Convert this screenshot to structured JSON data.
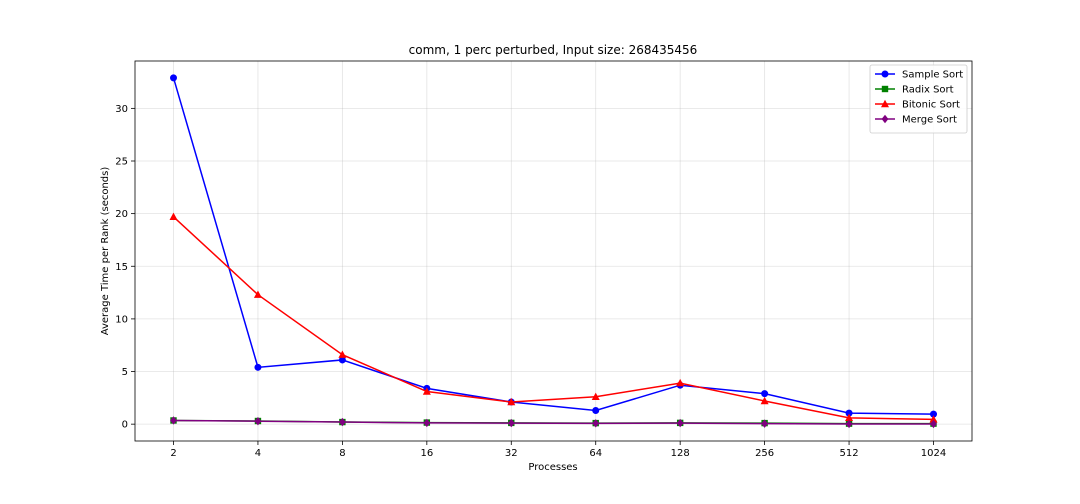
{
  "chart_data": {
    "type": "line",
    "title": "comm, 1 perc perturbed, Input size: 268435456",
    "xlabel": "Processes",
    "ylabel": "Average Time per Rank (seconds)",
    "x_scale": "log2",
    "categories": [
      "2",
      "4",
      "8",
      "16",
      "32",
      "64",
      "128",
      "256",
      "512",
      "1024"
    ],
    "ylim": [
      -1.6,
      34.5
    ],
    "yticks": [
      0,
      5,
      10,
      15,
      20,
      25,
      30
    ],
    "grid": true,
    "legend_position": "top-right",
    "series": [
      {
        "name": "Sample Sort",
        "color": "#0000ff",
        "marker": "circle",
        "values": [
          32.9,
          5.4,
          6.1,
          3.4,
          2.1,
          1.3,
          3.7,
          2.9,
          1.05,
          0.95
        ]
      },
      {
        "name": "Radix Sort",
        "color": "#008000",
        "marker": "square",
        "values": [
          0.35,
          0.3,
          0.2,
          0.15,
          0.12,
          0.1,
          0.12,
          0.1,
          0.05,
          0.05
        ]
      },
      {
        "name": "Bitonic Sort",
        "color": "#ff0000",
        "marker": "triangle",
        "values": [
          19.7,
          12.3,
          6.6,
          3.1,
          2.1,
          2.6,
          3.9,
          2.2,
          0.6,
          0.45
        ]
      },
      {
        "name": "Merge Sort",
        "color": "#800080",
        "marker": "diamond",
        "values": [
          0.35,
          0.28,
          0.2,
          0.12,
          0.1,
          0.08,
          0.1,
          0.05,
          0.02,
          0.02
        ]
      }
    ]
  }
}
